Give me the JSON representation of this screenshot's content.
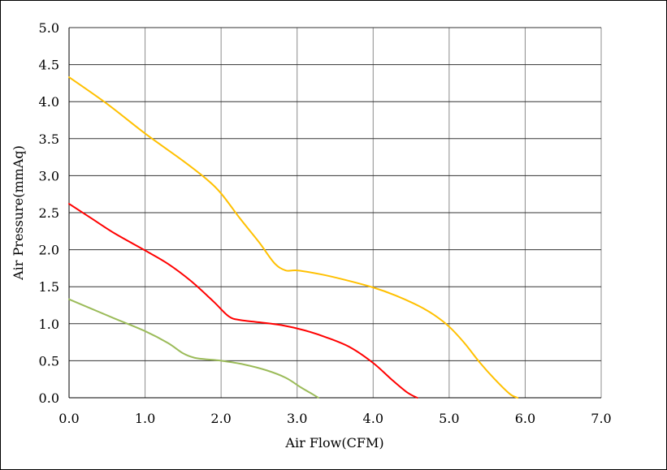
{
  "chart_data": {
    "type": "line",
    "title": "",
    "xlabel": "Air Flow(CFM)",
    "ylabel": "Air Pressure(mmAq)",
    "xlim": [
      0,
      7
    ],
    "ylim": [
      0,
      5
    ],
    "x_ticks": [
      "0.0",
      "1.0",
      "2.0",
      "3.0",
      "4.0",
      "5.0",
      "6.0",
      "7.0"
    ],
    "y_ticks": [
      "0.0",
      "0.5",
      "1.0",
      "1.5",
      "2.0",
      "2.5",
      "3.0",
      "3.5",
      "4.0",
      "4.5",
      "5.0"
    ],
    "x_tick_values": [
      0,
      1,
      2,
      3,
      4,
      5,
      6,
      7
    ],
    "y_tick_values": [
      0,
      0.5,
      1,
      1.5,
      2,
      2.5,
      3,
      3.5,
      4,
      4.5,
      5
    ],
    "grid": true,
    "legend": "none",
    "series": [
      {
        "color": "#FFC000",
        "points": [
          [
            0.0,
            4.33
          ],
          [
            0.5,
            3.97
          ],
          [
            1.0,
            3.57
          ],
          [
            1.5,
            3.2
          ],
          [
            1.8,
            2.96
          ],
          [
            2.0,
            2.76
          ],
          [
            2.25,
            2.42
          ],
          [
            2.5,
            2.1
          ],
          [
            2.7,
            1.82
          ],
          [
            2.85,
            1.72
          ],
          [
            3.0,
            1.72
          ],
          [
            3.3,
            1.67
          ],
          [
            3.6,
            1.6
          ],
          [
            4.0,
            1.49
          ],
          [
            4.3,
            1.38
          ],
          [
            4.6,
            1.24
          ],
          [
            4.8,
            1.12
          ],
          [
            5.0,
            0.96
          ],
          [
            5.2,
            0.74
          ],
          [
            5.4,
            0.48
          ],
          [
            5.6,
            0.25
          ],
          [
            5.8,
            0.05
          ],
          [
            5.9,
            0.0
          ]
        ]
      },
      {
        "color": "#FF0000",
        "points": [
          [
            0.0,
            2.62
          ],
          [
            0.3,
            2.42
          ],
          [
            0.6,
            2.22
          ],
          [
            1.0,
            1.99
          ],
          [
            1.3,
            1.81
          ],
          [
            1.6,
            1.58
          ],
          [
            1.9,
            1.3
          ],
          [
            2.1,
            1.1
          ],
          [
            2.25,
            1.05
          ],
          [
            2.5,
            1.02
          ],
          [
            2.8,
            0.98
          ],
          [
            3.1,
            0.91
          ],
          [
            3.4,
            0.81
          ],
          [
            3.7,
            0.68
          ],
          [
            4.0,
            0.47
          ],
          [
            4.25,
            0.24
          ],
          [
            4.45,
            0.07
          ],
          [
            4.58,
            0.0
          ]
        ]
      },
      {
        "color": "#9BBB59",
        "points": [
          [
            0.0,
            1.33
          ],
          [
            0.3,
            1.2
          ],
          [
            0.6,
            1.07
          ],
          [
            1.0,
            0.9
          ],
          [
            1.3,
            0.74
          ],
          [
            1.5,
            0.6
          ],
          [
            1.65,
            0.54
          ],
          [
            1.8,
            0.52
          ],
          [
            2.0,
            0.5
          ],
          [
            2.3,
            0.45
          ],
          [
            2.6,
            0.37
          ],
          [
            2.85,
            0.27
          ],
          [
            3.05,
            0.14
          ],
          [
            3.2,
            0.05
          ],
          [
            3.28,
            0.0
          ]
        ]
      }
    ]
  }
}
